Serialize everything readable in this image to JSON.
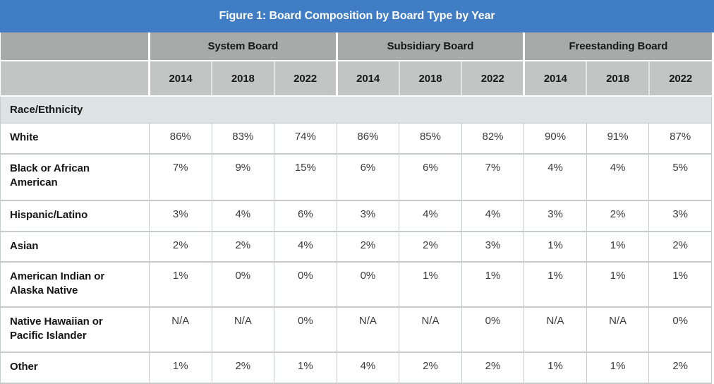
{
  "chart_data": {
    "type": "table",
    "title": "Figure 1: Board Composition by Board Type by Year",
    "column_groups": [
      "System Board",
      "Subsidiary Board",
      "Freestanding Board"
    ],
    "years_per_group": [
      "2014",
      "2018",
      "2022"
    ],
    "section_label": "Race/Ethnicity",
    "rows": [
      {
        "label": "White",
        "values": [
          "86%",
          "83%",
          "74%",
          "86%",
          "85%",
          "82%",
          "90%",
          "91%",
          "87%"
        ]
      },
      {
        "label": "Black or African American",
        "values": [
          "7%",
          "9%",
          "15%",
          "6%",
          "6%",
          "7%",
          "4%",
          "4%",
          "5%"
        ]
      },
      {
        "label": "Hispanic/Latino",
        "values": [
          "3%",
          "4%",
          "6%",
          "3%",
          "4%",
          "4%",
          "3%",
          "2%",
          "3%"
        ]
      },
      {
        "label": "Asian",
        "values": [
          "2%",
          "2%",
          "4%",
          "2%",
          "2%",
          "3%",
          "1%",
          "1%",
          "2%"
        ]
      },
      {
        "label": "American Indian or Alaska Native",
        "values": [
          "1%",
          "0%",
          "0%",
          "0%",
          "1%",
          "1%",
          "1%",
          "1%",
          "1%"
        ]
      },
      {
        "label": "Native Hawaiian or Pacific Islander",
        "values": [
          "N/A",
          "N/A",
          "0%",
          "N/A",
          "N/A",
          "0%",
          "N/A",
          "N/A",
          "0%"
        ]
      },
      {
        "label": "Other",
        "values": [
          "1%",
          "2%",
          "1%",
          "4%",
          "2%",
          "2%",
          "1%",
          "1%",
          "2%"
        ]
      }
    ]
  },
  "colors": {
    "title_bar": "#407dc5",
    "title_text": "#ffffff",
    "group_header_bg": "#a8aaa9",
    "year_header_bg": "#c1c5c4",
    "section_row_bg": "#dde3e5",
    "grid_border": "#c6ccce",
    "label_text": "#161616",
    "value_text": "#3b3b3b"
  }
}
